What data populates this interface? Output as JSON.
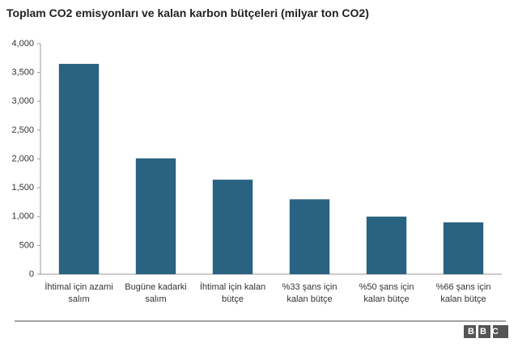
{
  "chart_data": {
    "type": "bar",
    "title": "Toplam CO2 emisyonları ve kalan karbon bütçeleri (milyar ton CO2)",
    "categories": [
      "İhtimal için azami salım",
      "Bugüne kadarki salım",
      "İhtimal için kalan bütçe",
      "%33 şans için kalan bütçe",
      "%50 şans için kalan bütçe",
      "%66 şans için kalan bütçe"
    ],
    "values": [
      3650,
      2010,
      1640,
      1300,
      1000,
      900
    ],
    "color": "#2a6282",
    "ylim": [
      0,
      4000
    ],
    "yticks": [
      0,
      500,
      {
        "value": 1000,
        "label": "1,000"
      },
      {
        "value": 1500,
        "label": "1,500"
      },
      {
        "value": 2000,
        "label": "2,000"
      },
      {
        "value": 2500,
        "label": "2,500"
      },
      {
        "value": 3000,
        "label": "3,000"
      },
      {
        "value": 3500,
        "label": "3,500"
      },
      {
        "value": 4000,
        "label": "4,000"
      }
    ],
    "grid": false,
    "source": "BBC"
  }
}
